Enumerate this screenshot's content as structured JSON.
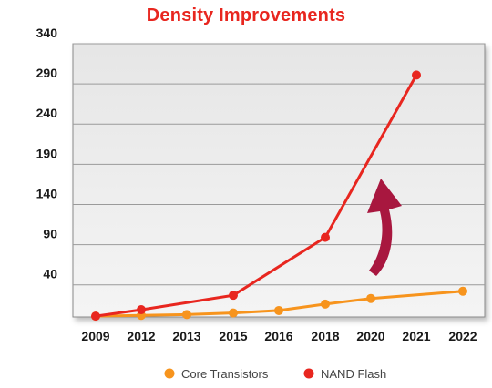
{
  "chart_data": {
    "type": "line",
    "title": "Density Improvements",
    "xlabel": "",
    "ylabel": "",
    "categories": [
      "2009",
      "2012",
      "2013",
      "2015",
      "2016",
      "2018",
      "2020",
      "2021",
      "2022"
    ],
    "y_ticks": [
      "340",
      "290",
      "240",
      "190",
      "140",
      "90",
      "40"
    ],
    "y_tick_values": [
      340,
      290,
      240,
      190,
      140,
      90,
      40
    ],
    "ylim": [
      0,
      340
    ],
    "grid": true,
    "legend_position": "bottom",
    "series": [
      {
        "name": "Core Transistors",
        "color": "#f7941d",
        "values": [
          1,
          2,
          3,
          5,
          8,
          16,
          23,
          null,
          32
        ]
      },
      {
        "name": "NAND Flash",
        "color": "#e8261f",
        "values": [
          1,
          9,
          null,
          27,
          null,
          99,
          null,
          301,
          null
        ]
      }
    ],
    "annotations": [
      {
        "type": "curved-arrow",
        "direction": "up",
        "color": "#a8173f"
      }
    ]
  }
}
